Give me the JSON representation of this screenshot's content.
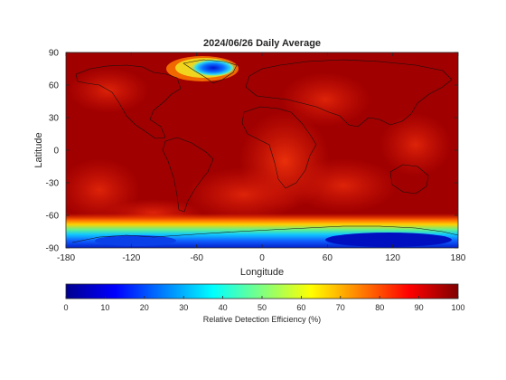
{
  "figure": {
    "title": "2024/06/26 Daily Average",
    "xlabel": "Longitude",
    "ylabel": "Latitude",
    "colorbar_label": "Relative Detection Efficiency (%)"
  },
  "chart_data": {
    "type": "heatmap",
    "title": "2024/06/26 Daily Average",
    "xlabel": "Longitude",
    "ylabel": "Latitude",
    "xlim": [
      -180,
      180
    ],
    "ylim": [
      -90,
      90
    ],
    "xticks": [
      -180,
      -120,
      -60,
      0,
      60,
      120,
      180
    ],
    "yticks": [
      90,
      60,
      30,
      0,
      -30,
      -60,
      -90
    ],
    "colormap": "jet",
    "clim": [
      0,
      100
    ],
    "colorbar": {
      "label": "Relative Detection Efficiency (%)",
      "ticks": [
        0,
        10,
        20,
        30,
        40,
        50,
        60,
        70,
        80,
        90,
        100
      ],
      "location": "bottom"
    },
    "colors": {
      "background_high": "#9e0000",
      "mid": "#e8180a",
      "low": "#0000c8"
    }
  }
}
